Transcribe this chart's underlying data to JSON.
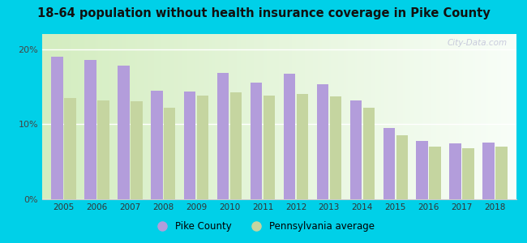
{
  "title": "18-64 population without health insurance coverage in Pike County",
  "years": [
    2005,
    2006,
    2007,
    2008,
    2009,
    2010,
    2011,
    2012,
    2013,
    2014,
    2015,
    2016,
    2017,
    2018
  ],
  "pike_county": [
    19.0,
    18.5,
    17.8,
    14.5,
    14.3,
    16.8,
    15.5,
    16.7,
    15.3,
    13.2,
    9.5,
    7.8,
    7.4,
    7.5
  ],
  "pa_average": [
    13.5,
    13.2,
    13.0,
    12.2,
    13.8,
    14.2,
    13.8,
    14.0,
    13.7,
    12.2,
    8.5,
    7.0,
    6.8,
    7.0
  ],
  "bar_color_pike": "#b39ddb",
  "bar_color_pa": "#c5d5a0",
  "background_outer": "#00d0e8",
  "background_plot_base": "#e8f5e0",
  "yticks": [
    0,
    10,
    20
  ],
  "ylim": [
    0,
    22
  ],
  "legend_pike": "Pike County",
  "legend_pa": "Pennsylvania average",
  "watermark": "City-Data.com"
}
